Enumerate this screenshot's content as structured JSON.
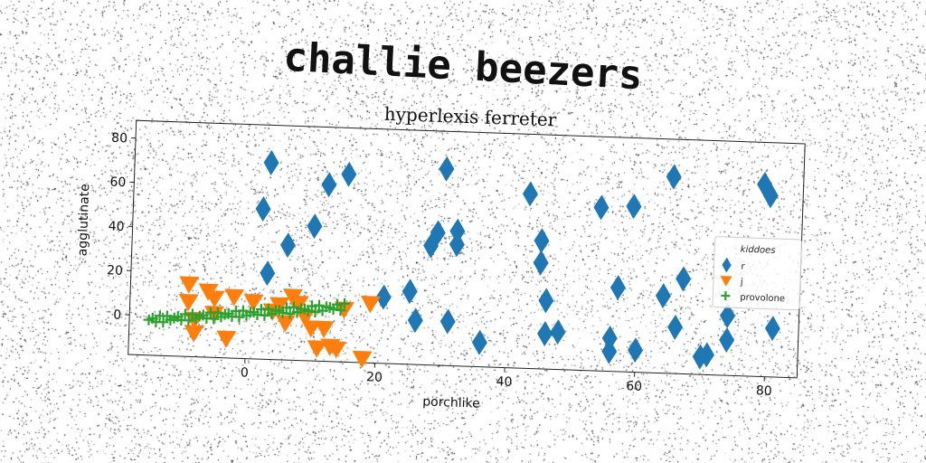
{
  "chart_data": {
    "type": "scatter",
    "suptitle": "challie beezers",
    "title": "hyperlexis ferreter",
    "xlabel": "porchlike",
    "ylabel": "agglutinate",
    "xlim": [
      -18,
      85
    ],
    "ylim": [
      -18,
      88
    ],
    "xticks": [
      0,
      20,
      40,
      60,
      80
    ],
    "yticks": [
      0,
      20,
      40,
      60,
      80
    ],
    "grid": false,
    "legend": {
      "title": "kiddoes",
      "placement": "right"
    },
    "series": [
      {
        "name": "r",
        "marker": "diamond",
        "color": "#1f77b4",
        "points": [
          [
            2,
            50
          ],
          [
            3,
            71
          ],
          [
            3,
            21
          ],
          [
            6,
            34
          ],
          [
            10,
            43
          ],
          [
            12,
            62
          ],
          [
            15,
            67
          ],
          [
            21,
            12
          ],
          [
            25,
            15
          ],
          [
            26,
            2
          ],
          [
            28,
            36
          ],
          [
            29,
            42
          ],
          [
            30,
            71
          ],
          [
            31,
            2
          ],
          [
            32,
            37
          ],
          [
            32,
            43
          ],
          [
            36,
            -7
          ],
          [
            43,
            61
          ],
          [
            45,
            40
          ],
          [
            45,
            30
          ],
          [
            46,
            13
          ],
          [
            46,
            -2
          ],
          [
            48,
            -1
          ],
          [
            54,
            56
          ],
          [
            56,
            -3
          ],
          [
            56,
            -9
          ],
          [
            57,
            20
          ],
          [
            59,
            57
          ],
          [
            60,
            -8
          ],
          [
            64,
            17
          ],
          [
            65,
            71
          ],
          [
            66,
            3
          ],
          [
            67,
            25
          ],
          [
            70,
            -10
          ],
          [
            71,
            -9
          ],
          [
            74,
            9
          ],
          [
            74,
            -2
          ],
          [
            79,
            69
          ],
          [
            80,
            64
          ],
          [
            81,
            4
          ]
        ]
      },
      {
        "name": "j",
        "marker": "triangle-down",
        "color": "#ff7f0e",
        "points": [
          [
            -9,
            15
          ],
          [
            -9,
            7
          ],
          [
            -8,
            -1
          ],
          [
            -8,
            -7
          ],
          [
            -6,
            12
          ],
          [
            -5,
            9
          ],
          [
            -5,
            2
          ],
          [
            -3,
            -9
          ],
          [
            -2,
            10
          ],
          [
            1,
            8
          ],
          [
            4,
            4
          ],
          [
            5,
            7
          ],
          [
            6,
            -1
          ],
          [
            7,
            11
          ],
          [
            8,
            8
          ],
          [
            9,
            2
          ],
          [
            10,
            -3
          ],
          [
            11,
            -12
          ],
          [
            12,
            -3
          ],
          [
            13,
            -11
          ],
          [
            14,
            -12
          ],
          [
            15,
            6
          ],
          [
            18,
            -16
          ],
          [
            19,
            9
          ]
        ]
      },
      {
        "name": "provolone",
        "marker": "plus",
        "color": "#2ca02c",
        "x_start": -15,
        "x_end": 15,
        "count": 55,
        "slope": 0.3,
        "intercept": 2.5
      }
    ]
  }
}
